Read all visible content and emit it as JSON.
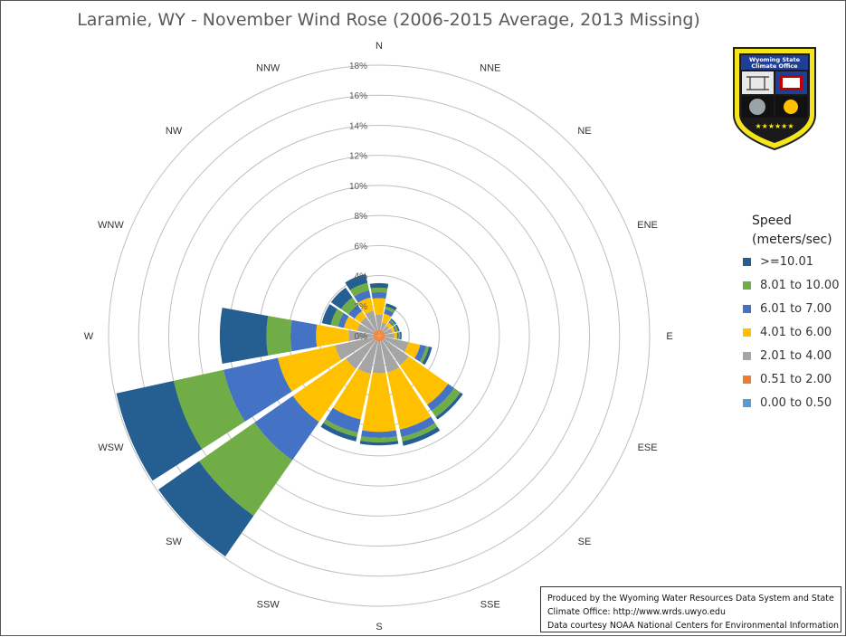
{
  "chart_data": {
    "type": "radar",
    "title": "Laramie, WY - November Wind Rose (2006-2015 Average, 2013 Missing)",
    "directions": [
      "N",
      "NNE",
      "NE",
      "ENE",
      "E",
      "ESE",
      "SE",
      "SSE",
      "S",
      "SSW",
      "SW",
      "WSW",
      "W",
      "WNW",
      "NW",
      "NNW"
    ],
    "radial_ticks": [
      "2%",
      "4%",
      "6%",
      "8%",
      "10%",
      "12%",
      "14%",
      "16%",
      "18%"
    ],
    "radial_max": 18,
    "legend_title": "Speed (meters/sec)",
    "series": [
      {
        "name": "0.00 to 0.50",
        "color": "#5b9bd5",
        "values": [
          0.0,
          0.0,
          0.0,
          0.0,
          0.0,
          0.0,
          0.0,
          0.0,
          0.0,
          0.0,
          0.0,
          0.0,
          0.0,
          0.0,
          0.0,
          0.0
        ]
      },
      {
        "name": "0.51 to 2.00",
        "color": "#ed7d31",
        "values": [
          0.4,
          0.4,
          0.4,
          0.4,
          0.4,
          0.4,
          0.4,
          0.4,
          0.4,
          0.4,
          0.4,
          0.4,
          0.4,
          0.4,
          0.4,
          0.4
        ]
      },
      {
        "name": "2.01 to 4.00",
        "color": "#a5a5a5",
        "values": [
          1.0,
          0.5,
          0.4,
          0.5,
          0.6,
          1.6,
          2.0,
          2.1,
          2.1,
          2.2,
          2.3,
          2.6,
          1.6,
          1.1,
          1.1,
          1.3
        ]
      },
      {
        "name": "4.01 to 6.00",
        "color": "#ffc000",
        "values": [
          1.1,
          0.6,
          0.3,
          0.2,
          0.2,
          0.8,
          3.2,
          3.9,
          3.9,
          3.1,
          4.3,
          3.9,
          2.2,
          0.9,
          0.5,
          0.9
        ]
      },
      {
        "name": "6.01 to 7.00",
        "color": "#4472c4",
        "values": [
          0.4,
          0.3,
          0.1,
          0.1,
          0.1,
          0.4,
          0.5,
          0.5,
          0.4,
          0.9,
          3.1,
          3.7,
          1.7,
          0.4,
          0.5,
          0.5
        ]
      },
      {
        "name": "8.01 to 10.00",
        "color": "#70ad47",
        "values": [
          0.3,
          0.2,
          0.1,
          0.1,
          0.1,
          0.2,
          0.5,
          0.3,
          0.3,
          0.3,
          4.5,
          3.4,
          1.6,
          0.5,
          0.6,
          0.5
        ]
      },
      {
        "name": ">=10.01",
        "color": "#255e91",
        "values": [
          0.3,
          0.2,
          0.1,
          0.1,
          0.1,
          0.2,
          0.2,
          0.3,
          0.2,
          0.3,
          3.3,
          3.9,
          3.1,
          0.6,
          0.8,
          0.6
        ]
      }
    ],
    "grid": true,
    "legend_position": "right"
  },
  "legend_order": [
    ">=10.01",
    "8.01 to 10.00",
    "6.01 to 7.00",
    "4.01 to 6.00",
    "2.01 to 4.00",
    "0.51 to 2.00",
    "0.00 to 0.50"
  ],
  "credits": {
    "line1": "Produced by the Wyoming Water Resources Data System and State",
    "line2": "Climate Office: http://www.wrds.uwyo.edu",
    "line3": "Data courtesy NOAA National Centers for Environmental Information"
  },
  "logo": {
    "line1": "Wyoming State",
    "line2": "Climate Office",
    "stars": "★★★★★★"
  }
}
